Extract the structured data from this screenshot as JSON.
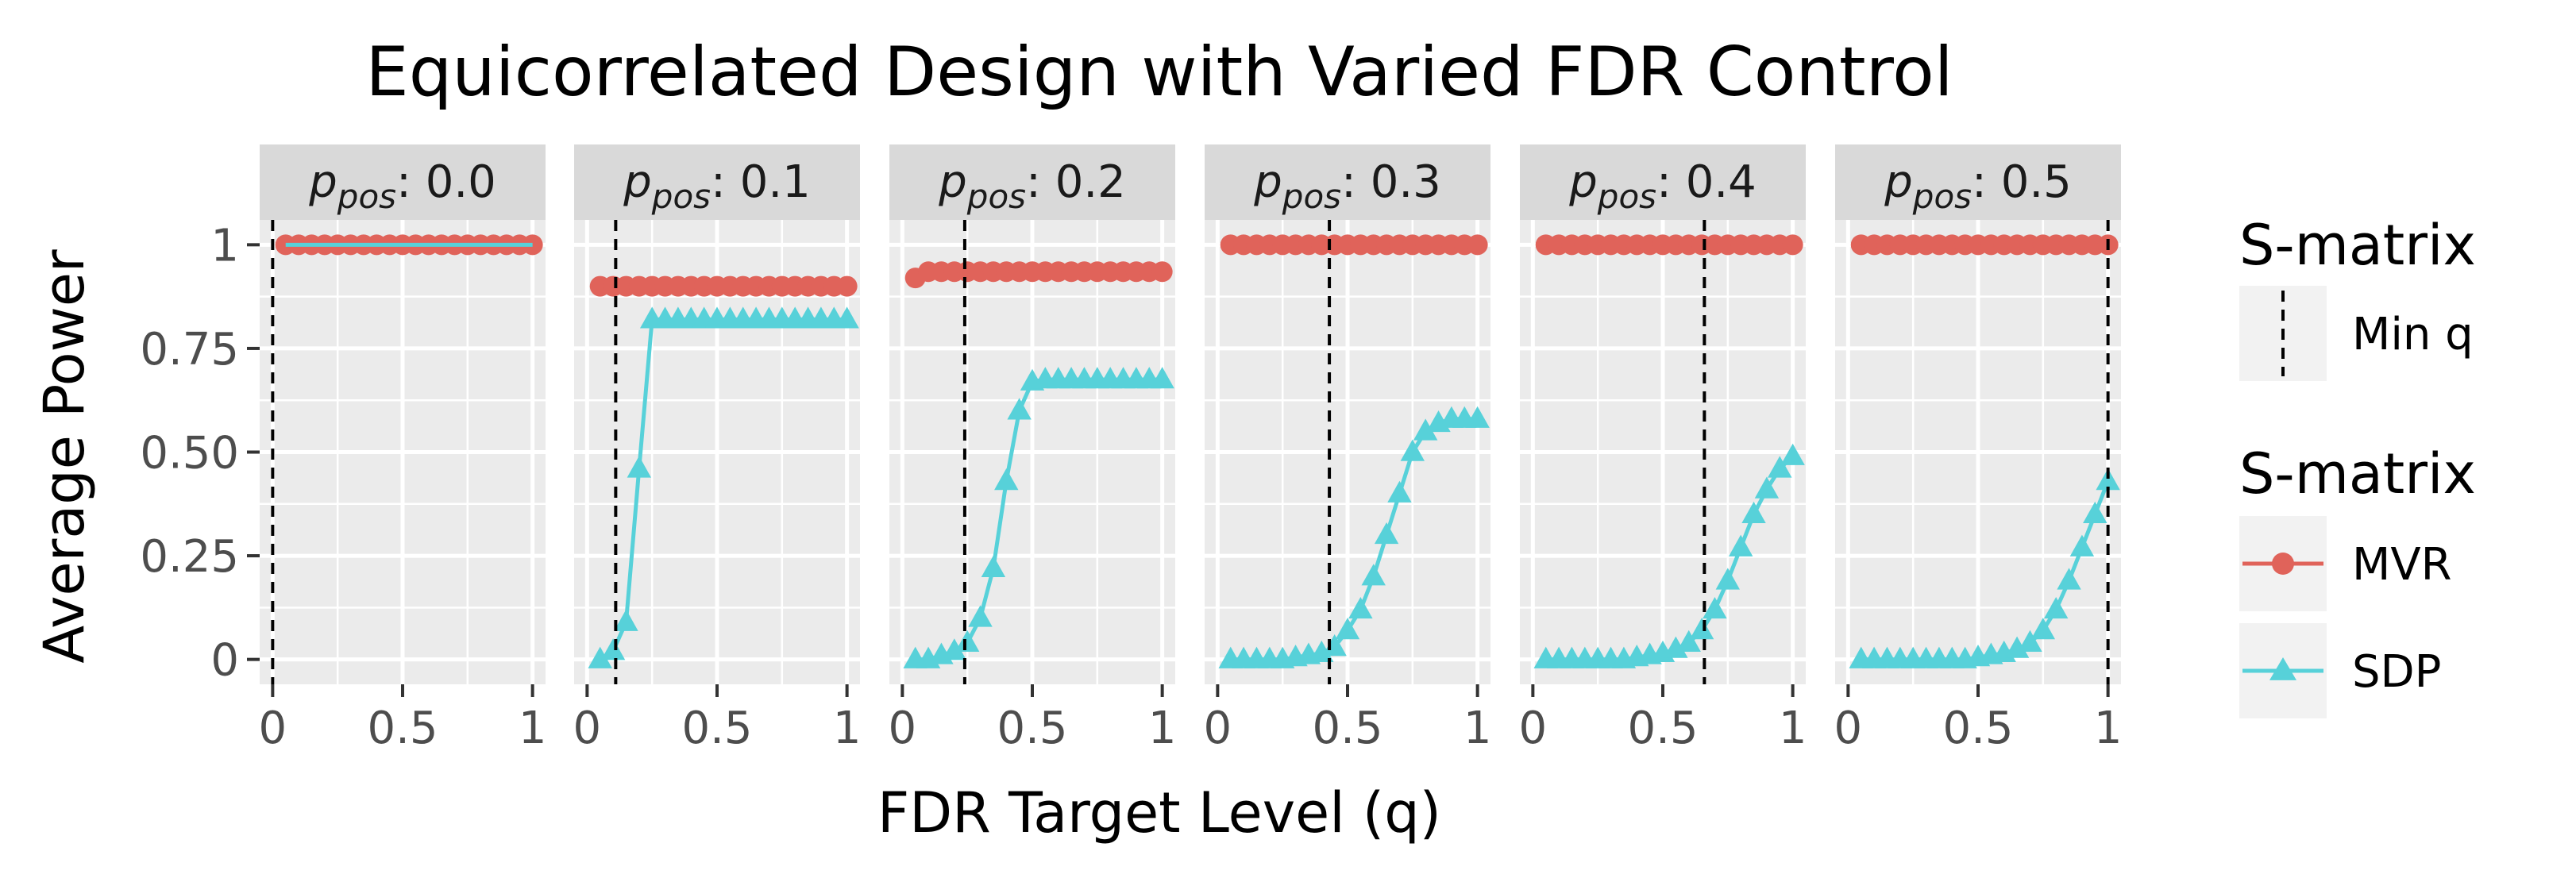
{
  "chart_data": {
    "type": "line",
    "title": "Equicorrelated Design with Varied FDR Control",
    "xlabel": "FDR Target Level (q)",
    "ylabel": "Average Power",
    "xlim": [
      -0.05,
      1.05
    ],
    "ylim": [
      -0.06,
      1.06
    ],
    "x_ticks": [
      0,
      0.5,
      1
    ],
    "x_tick_labels": [
      "0",
      "0.5",
      "1"
    ],
    "y_ticks": [
      0,
      0.25,
      0.5,
      0.75,
      1
    ],
    "y_tick_labels": [
      "0",
      "0.25",
      "0.50",
      "0.75",
      "1"
    ],
    "facet_label_prefix": "p",
    "facet_label_subscript": "pos",
    "facets": [
      {
        "label": ": 0.0",
        "min_q": 0.0,
        "series": [
          {
            "name": "MVR",
            "x": [
              0.05,
              0.1,
              0.15,
              0.2,
              0.25,
              0.3,
              0.35,
              0.4,
              0.45,
              0.5,
              0.55,
              0.6,
              0.65,
              0.7,
              0.75,
              0.8,
              0.85,
              0.9,
              0.95,
              1.0
            ],
            "y": [
              1,
              1,
              1,
              1,
              1,
              1,
              1,
              1,
              1,
              1,
              1,
              1,
              1,
              1,
              1,
              1,
              1,
              1,
              1,
              1
            ]
          },
          {
            "name": "SDP",
            "x": [
              0.05,
              1.0
            ],
            "y": [
              1,
              1
            ],
            "markers": false
          }
        ]
      },
      {
        "label": ": 0.1",
        "min_q": 0.11,
        "series": [
          {
            "name": "MVR",
            "x": [
              0.05,
              0.1,
              0.15,
              0.2,
              0.25,
              0.3,
              0.35,
              0.4,
              0.45,
              0.5,
              0.55,
              0.6,
              0.65,
              0.7,
              0.75,
              0.8,
              0.85,
              0.9,
              0.95,
              1.0
            ],
            "y": [
              0.9,
              0.9,
              0.9,
              0.9,
              0.9,
              0.9,
              0.9,
              0.9,
              0.9,
              0.9,
              0.9,
              0.9,
              0.9,
              0.9,
              0.9,
              0.9,
              0.9,
              0.9,
              0.9,
              0.9
            ]
          },
          {
            "name": "SDP",
            "x": [
              0.05,
              0.1,
              0.15,
              0.2,
              0.25,
              0.3,
              0.35,
              0.4,
              0.45,
              0.5,
              0.55,
              0.6,
              0.65,
              0.7,
              0.75,
              0.8,
              0.85,
              0.9,
              0.95,
              1.0
            ],
            "y": [
              0.0,
              0.02,
              0.09,
              0.46,
              0.82,
              0.82,
              0.82,
              0.82,
              0.82,
              0.82,
              0.82,
              0.82,
              0.82,
              0.82,
              0.82,
              0.82,
              0.82,
              0.82,
              0.82,
              0.82
            ]
          }
        ]
      },
      {
        "label": ": 0.2",
        "min_q": 0.24,
        "series": [
          {
            "name": "MVR",
            "x": [
              0.05,
              0.1,
              0.15,
              0.2,
              0.25,
              0.3,
              0.35,
              0.4,
              0.45,
              0.5,
              0.55,
              0.6,
              0.65,
              0.7,
              0.75,
              0.8,
              0.85,
              0.9,
              0.95,
              1.0
            ],
            "y": [
              0.92,
              0.935,
              0.935,
              0.935,
              0.935,
              0.935,
              0.935,
              0.935,
              0.935,
              0.935,
              0.935,
              0.935,
              0.935,
              0.935,
              0.935,
              0.935,
              0.935,
              0.935,
              0.935,
              0.935
            ]
          },
          {
            "name": "SDP",
            "x": [
              0.05,
              0.1,
              0.15,
              0.2,
              0.25,
              0.3,
              0.35,
              0.4,
              0.45,
              0.5,
              0.55,
              0.6,
              0.65,
              0.7,
              0.75,
              0.8,
              0.85,
              0.9,
              0.95,
              1.0
            ],
            "y": [
              0.0,
              0.0,
              0.01,
              0.02,
              0.04,
              0.1,
              0.22,
              0.43,
              0.6,
              0.67,
              0.675,
              0.675,
              0.675,
              0.675,
              0.675,
              0.675,
              0.675,
              0.675,
              0.675,
              0.675
            ]
          }
        ]
      },
      {
        "label": ": 0.3",
        "min_q": 0.43,
        "series": [
          {
            "name": "MVR",
            "x": [
              0.05,
              0.1,
              0.15,
              0.2,
              0.25,
              0.3,
              0.35,
              0.4,
              0.45,
              0.5,
              0.55,
              0.6,
              0.65,
              0.7,
              0.75,
              0.8,
              0.85,
              0.9,
              0.95,
              1.0
            ],
            "y": [
              1,
              1,
              1,
              1,
              1,
              1,
              1,
              1,
              1,
              1,
              1,
              1,
              1,
              1,
              1,
              1,
              1,
              1,
              1,
              1
            ]
          },
          {
            "name": "SDP",
            "x": [
              0.05,
              0.1,
              0.15,
              0.2,
              0.25,
              0.3,
              0.35,
              0.4,
              0.45,
              0.5,
              0.55,
              0.6,
              0.65,
              0.7,
              0.75,
              0.8,
              0.85,
              0.9,
              0.95,
              1.0
            ],
            "y": [
              0.0,
              0.0,
              0.0,
              0.0,
              0.0,
              0.005,
              0.01,
              0.015,
              0.03,
              0.07,
              0.12,
              0.2,
              0.3,
              0.4,
              0.5,
              0.55,
              0.57,
              0.58,
              0.58,
              0.58
            ]
          }
        ]
      },
      {
        "label": ": 0.4",
        "min_q": 0.66,
        "series": [
          {
            "name": "MVR",
            "x": [
              0.05,
              0.1,
              0.15,
              0.2,
              0.25,
              0.3,
              0.35,
              0.4,
              0.45,
              0.5,
              0.55,
              0.6,
              0.65,
              0.7,
              0.75,
              0.8,
              0.85,
              0.9,
              0.95,
              1.0
            ],
            "y": [
              1,
              1,
              1,
              1,
              1,
              1,
              1,
              1,
              1,
              1,
              1,
              1,
              1,
              1,
              1,
              1,
              1,
              1,
              1,
              1
            ]
          },
          {
            "name": "SDP",
            "x": [
              0.05,
              0.1,
              0.15,
              0.2,
              0.25,
              0.3,
              0.35,
              0.4,
              0.45,
              0.5,
              0.55,
              0.6,
              0.65,
              0.7,
              0.75,
              0.8,
              0.85,
              0.9,
              0.95,
              1.0
            ],
            "y": [
              0.0,
              0.0,
              0.0,
              0.0,
              0.0,
              0.0,
              0.0,
              0.005,
              0.01,
              0.015,
              0.025,
              0.04,
              0.07,
              0.12,
              0.19,
              0.27,
              0.35,
              0.41,
              0.46,
              0.49
            ]
          }
        ]
      },
      {
        "label": ": 0.5",
        "min_q": 1.0,
        "series": [
          {
            "name": "MVR",
            "x": [
              0.05,
              0.1,
              0.15,
              0.2,
              0.25,
              0.3,
              0.35,
              0.4,
              0.45,
              0.5,
              0.55,
              0.6,
              0.65,
              0.7,
              0.75,
              0.8,
              0.85,
              0.9,
              0.95,
              1.0
            ],
            "y": [
              1,
              1,
              1,
              1,
              1,
              1,
              1,
              1,
              1,
              1,
              1,
              1,
              1,
              1,
              1,
              1,
              1,
              1,
              1,
              1
            ]
          },
          {
            "name": "SDP",
            "x": [
              0.05,
              0.1,
              0.15,
              0.2,
              0.25,
              0.3,
              0.35,
              0.4,
              0.45,
              0.5,
              0.55,
              0.6,
              0.65,
              0.7,
              0.75,
              0.8,
              0.85,
              0.9,
              0.95,
              1.0
            ],
            "y": [
              0.0,
              0.0,
              0.0,
              0.0,
              0.0,
              0.0,
              0.0,
              0.0,
              0.0,
              0.005,
              0.01,
              0.015,
              0.025,
              0.04,
              0.07,
              0.12,
              0.19,
              0.27,
              0.35,
              0.43
            ]
          }
        ]
      }
    ],
    "legends": [
      {
        "title": "S-matrix",
        "items": [
          {
            "label": "Min q",
            "kind": "vline"
          }
        ]
      },
      {
        "title": "S-matrix",
        "items": [
          {
            "label": "MVR",
            "kind": "line-circle",
            "color": "#e0635a"
          },
          {
            "label": "SDP",
            "kind": "line-triangle",
            "color": "#57d1d9"
          }
        ]
      }
    ],
    "colors": {
      "MVR": "#e0635a",
      "SDP": "#57d1d9"
    },
    "legend_position": "right"
  }
}
